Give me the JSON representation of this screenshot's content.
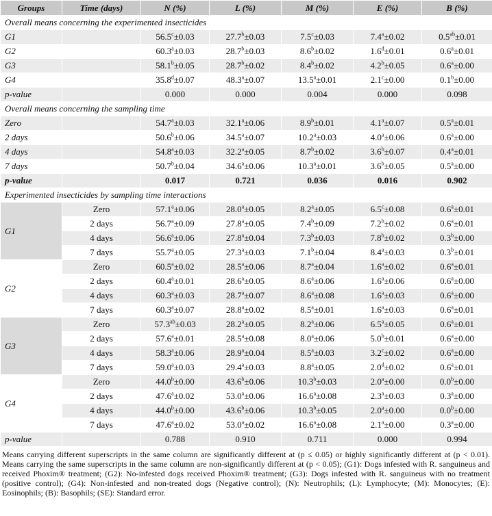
{
  "header": [
    "Groups",
    "Time (days)",
    "N (%)",
    "L (%)",
    "M (%)",
    "E (%)",
    "B (%)"
  ],
  "sections": [
    {
      "title": "Overall means concerning the experimented insecticides",
      "rows": [
        {
          "label": "G1",
          "cells": [
            [
              "56.5",
              "c",
              "±0.03"
            ],
            [
              "27.7",
              "b",
              "±0.03"
            ],
            [
              "7.5",
              "c",
              "±0.03"
            ],
            [
              "7.4",
              "a",
              "±0.02"
            ],
            [
              "0.5",
              "ab",
              "±0.01"
            ]
          ]
        },
        {
          "label": "G2",
          "cells": [
            [
              "60.3",
              "a",
              "±0.03"
            ],
            [
              "28.7",
              "b",
              "±0.03"
            ],
            [
              "8.6",
              "b",
              "±0.02"
            ],
            [
              "1.6",
              "d",
              "±0.01"
            ],
            [
              "0.6",
              "a",
              "±0.01"
            ]
          ]
        },
        {
          "label": "G3",
          "cells": [
            [
              "58.1",
              "b",
              "±0.05"
            ],
            [
              "28.7",
              "b",
              "±0.02"
            ],
            [
              "8.4",
              "b",
              "±0.02"
            ],
            [
              "4.2",
              "b",
              "±0.05"
            ],
            [
              "0.6",
              "a",
              "±0.00"
            ]
          ]
        },
        {
          "label": "G4",
          "cells": [
            [
              "35.8",
              "d",
              "±0.07"
            ],
            [
              "48.3",
              "a",
              "±0.07"
            ],
            [
              "13.5",
              "a",
              "±0.01"
            ],
            [
              "2.1",
              "c",
              "±0.00"
            ],
            [
              "0.1",
              "b",
              "±0.00"
            ]
          ]
        }
      ],
      "p_value": {
        "label": "p-value",
        "cells": [
          "0.000",
          "0.000",
          "0.004",
          "0.000",
          "0.098"
        ],
        "bold": false
      }
    },
    {
      "title": "Overall means concerning the sampling time",
      "rows": [
        {
          "label": "Zero",
          "cells": [
            [
              "54.7",
              "a",
              "±0.03"
            ],
            [
              "32.1",
              "a",
              "±0.06"
            ],
            [
              "8.9",
              "b",
              "±0.01"
            ],
            [
              "4.1",
              "a",
              "±0.07"
            ],
            [
              "0.5",
              "a",
              "±0.01"
            ]
          ]
        },
        {
          "label": "2 days",
          "cells": [
            [
              "50.6",
              "b",
              "±0.06"
            ],
            [
              "34.5",
              "a",
              "±0.07"
            ],
            [
              "10.2",
              "a",
              "±0.03"
            ],
            [
              "4.0",
              "a",
              "±0.06"
            ],
            [
              "0.6",
              "a",
              "±0.00"
            ]
          ]
        },
        {
          "label": "4 days",
          "cells": [
            [
              "54.8",
              "a",
              "±0.03"
            ],
            [
              "32.2",
              "a",
              "±0.05"
            ],
            [
              "8.7",
              "b",
              "±0.02"
            ],
            [
              "3.6",
              "b",
              "±0.07"
            ],
            [
              "0.4",
              "a",
              "±0.01"
            ]
          ]
        },
        {
          "label": "7 days",
          "cells": [
            [
              "50.7",
              "b",
              "±0.04"
            ],
            [
              "34.6",
              "a",
              "±0.06"
            ],
            [
              "10.3",
              "a",
              "±0.01"
            ],
            [
              "3.6",
              "b",
              "±0.05"
            ],
            [
              "0.5",
              "a",
              "±0.00"
            ]
          ]
        }
      ],
      "p_value": {
        "label": "p-value",
        "cells": [
          "0.017",
          "0.721",
          "0.036",
          "0.016",
          "0.902"
        ],
        "bold": true
      }
    }
  ],
  "interactions": {
    "title": "Experimented insecticides by sampling time interactions",
    "groups": [
      {
        "label": "G1",
        "rows": [
          {
            "time": "Zero",
            "cells": [
              [
                "57.1",
                "a",
                "±0.06"
              ],
              [
                "28.0",
                "a",
                "±0.05"
              ],
              [
                "8.2",
                "a",
                "±0.05"
              ],
              [
                "6.5",
                "c",
                "±0.08"
              ],
              [
                "0.6",
                "a",
                "±0.01"
              ]
            ]
          },
          {
            "time": "2 days",
            "cells": [
              [
                "56.7",
                "a",
                "±0.09"
              ],
              [
                "27.8",
                "a",
                "±0.05"
              ],
              [
                "7.4",
                "b",
                "±0.09"
              ],
              [
                "7.2",
                "b",
                "±0.02"
              ],
              [
                "0.6",
                "a",
                "±0.01"
              ]
            ]
          },
          {
            "time": "4 days",
            "cells": [
              [
                "56.6",
                "a",
                "±0.06"
              ],
              [
                "27.8",
                "a",
                "±0.04"
              ],
              [
                "7.3",
                "b",
                "±0.03"
              ],
              [
                "7.8",
                "b",
                "±0.02"
              ],
              [
                "0.3",
                "b",
                "±0.00"
              ]
            ]
          },
          {
            "time": "7 days",
            "cells": [
              [
                "55.7",
                "a",
                "±0.05"
              ],
              [
                "27.3",
                "a",
                "±0.03"
              ],
              [
                "7.1",
                "b",
                "±0.04"
              ],
              [
                "8.4",
                "a",
                "±0.03"
              ],
              [
                "0.3",
                "b",
                "±0.01"
              ]
            ]
          }
        ]
      },
      {
        "label": "G2",
        "rows": [
          {
            "time": "Zero",
            "cells": [
              [
                "60.5",
                "a",
                "±0.02"
              ],
              [
                "28.5",
                "a",
                "±0.06"
              ],
              [
                "8.7",
                "a",
                "±0.04"
              ],
              [
                "1.6",
                "a",
                "±0.02"
              ],
              [
                "0.6",
                "a",
                "±0.01"
              ]
            ]
          },
          {
            "time": "2 days",
            "cells": [
              [
                "60.4",
                "a",
                "±0.01"
              ],
              [
                "28.6",
                "a",
                "±0.05"
              ],
              [
                "8.6",
                "a",
                "±0.06"
              ],
              [
                "1.6",
                "a",
                "±0.06"
              ],
              [
                "0.6",
                "a",
                "±0.00"
              ]
            ]
          },
          {
            "time": "4 days",
            "cells": [
              [
                "60.3",
                "a",
                "±0.03"
              ],
              [
                "28.7",
                "a",
                "±0.07"
              ],
              [
                "8.6",
                "a",
                "±0.08"
              ],
              [
                "1.6",
                "a",
                "±0.03"
              ],
              [
                "0.6",
                "a",
                "±0.00"
              ]
            ]
          },
          {
            "time": "7 days",
            "cells": [
              [
                "60.3",
                "a",
                "±0.07"
              ],
              [
                "28.8",
                "a",
                "±0.02"
              ],
              [
                "8.5",
                "a",
                "±0.01"
              ],
              [
                "1.6",
                "a",
                "±0.03"
              ],
              [
                "0.6",
                "a",
                "±0.01"
              ]
            ]
          }
        ]
      },
      {
        "label": "G3",
        "rows": [
          {
            "time": "Zero",
            "cells": [
              [
                "57.3",
                "ab",
                "±0.03"
              ],
              [
                "28.2",
                "a",
                "±0.05"
              ],
              [
                "8.2",
                "a",
                "±0.06"
              ],
              [
                "6.5",
                "a",
                "±0.05"
              ],
              [
                "0.6",
                "a",
                "±0.01"
              ]
            ]
          },
          {
            "time": "2 days",
            "cells": [
              [
                "57.6",
                "a",
                "±0.01"
              ],
              [
                "28.5",
                "a",
                "±0.08"
              ],
              [
                "8.0",
                "a",
                "±0.06"
              ],
              [
                "5.0",
                "b",
                "±0.01"
              ],
              [
                "0.6",
                "a",
                "±0.00"
              ]
            ]
          },
          {
            "time": "4 days",
            "cells": [
              [
                "58.3",
                "a",
                "±0.06"
              ],
              [
                "28.9",
                "a",
                "±0.04"
              ],
              [
                "8.5",
                "a",
                "±0.03"
              ],
              [
                "3.2",
                "c",
                "±0.02"
              ],
              [
                "0.6",
                "a",
                "±0.00"
              ]
            ]
          },
          {
            "time": "7 days",
            "cells": [
              [
                "59.0",
                "a",
                "±0.03"
              ],
              [
                "29.4",
                "a",
                "±0.03"
              ],
              [
                "8.8",
                "a",
                "±0.05"
              ],
              [
                "2.0",
                "d",
                "±0.02"
              ],
              [
                "0.6",
                "a",
                "±0.01"
              ]
            ]
          }
        ]
      },
      {
        "label": "G4",
        "rows": [
          {
            "time": "Zero",
            "cells": [
              [
                "44.0",
                "b",
                "±0.00"
              ],
              [
                "43.6",
                "b",
                "±0.06"
              ],
              [
                "10.3",
                "b",
                "±0.03"
              ],
              [
                "2.0",
                "a",
                "±0.00"
              ],
              [
                "0.0",
                "b",
                "±0.00"
              ]
            ]
          },
          {
            "time": "2 days",
            "cells": [
              [
                "47.6",
                "a",
                "±0.02"
              ],
              [
                "53.0",
                "a",
                "±0.06"
              ],
              [
                "16.6",
                "a",
                "±0.08"
              ],
              [
                "2.3",
                "a",
                "±0.03"
              ],
              [
                "0.3",
                "a",
                "±0.00"
              ]
            ]
          },
          {
            "time": "4 days",
            "cells": [
              [
                "44.0",
                "b",
                "±0.00"
              ],
              [
                "43.6",
                "b",
                "±0.06"
              ],
              [
                "10.3",
                "b",
                "±0.05"
              ],
              [
                "2.0",
                "a",
                "±0.00"
              ],
              [
                "0.0",
                "b",
                "±0.00"
              ]
            ]
          },
          {
            "time": "7 days",
            "cells": [
              [
                "47.6",
                "a",
                "±0.02"
              ],
              [
                "53.0",
                "a",
                "±0.02"
              ],
              [
                "16.6",
                "a",
                "±0.08"
              ],
              [
                "2.1",
                "a",
                "±0.00"
              ],
              [
                "0.3",
                "a",
                "±0.00"
              ]
            ]
          }
        ]
      }
    ],
    "p_value": {
      "label": "p-value",
      "cells": [
        "0.788",
        "0.910",
        "0.711",
        "0.000",
        "0.994"
      ],
      "bold": false
    }
  },
  "footnote": "Means carrying different superscripts in the same column are significantly different at (p ≤ 0.05) or highly significantly different at (p < 0.01). Means carrying the same superscripts in the same column are non-significantly different at (p < 0.05); (G1): Dogs infested with R. sanguineus and received Phoxim® treatment; (G2): No-infested dogs received Phoxim® treatment; (G3): Dogs infested with R. sanguineus with no treatment (positive control); (G4): Non-infested and non-treated dogs (Negative control); (N): Neutrophils; (L): Lymphocyte; (M): Monocytes; (E): Eosinophils; (B): Basophils; (SE): Standard error."
}
